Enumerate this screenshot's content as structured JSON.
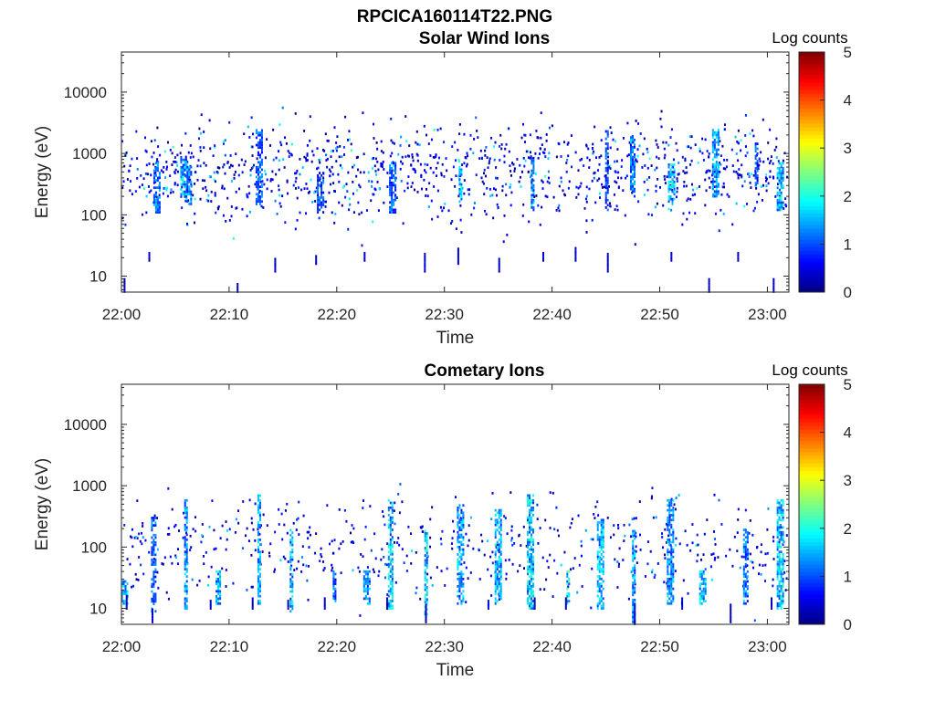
{
  "figure": {
    "title": "RPCICA160114T22.PNG"
  },
  "chart_data": [
    {
      "type": "heatmap",
      "title": "Solar Wind Ions",
      "xlabel": "Time",
      "ylabel": "Energy (eV)",
      "x_ticks": [
        "22:00",
        "22:10",
        "22:20",
        "22:30",
        "22:40",
        "22:50",
        "23:00"
      ],
      "x_range_minutes": [
        0,
        62
      ],
      "y_scale": "log",
      "y_ticks": [
        10,
        100,
        1000,
        10000
      ],
      "y_tick_labels": [
        "10",
        "100",
        "1000",
        "10000"
      ],
      "y_range": [
        5.5,
        45000
      ],
      "colorbar": {
        "title": "Log counts",
        "range": [
          0,
          5
        ],
        "ticks": [
          "0",
          "1",
          "2",
          "3",
          "4",
          "5"
        ]
      },
      "grid": false,
      "scatter_seed": 11,
      "scatter": {
        "n": 1150,
        "logE_min": 0.75,
        "logE_max": 4.35,
        "peak_logE": 2.7,
        "spread": 0.55,
        "max_level": 2.2
      },
      "bursts": [
        {
          "t": 3.3,
          "e_lo": 110,
          "e_hi": 700,
          "level": 1.4
        },
        {
          "t": 5.8,
          "e_lo": 180,
          "e_hi": 900,
          "level": 1.7
        },
        {
          "t": 6.3,
          "e_lo": 150,
          "e_hi": 600,
          "level": 1.6
        },
        {
          "t": 12.8,
          "e_lo": 150,
          "e_hi": 2500,
          "level": 1.3
        },
        {
          "t": 18.5,
          "e_lo": 110,
          "e_hi": 500,
          "level": 1.2
        },
        {
          "t": 25.2,
          "e_lo": 110,
          "e_hi": 700,
          "level": 1.3
        },
        {
          "t": 31.5,
          "e_lo": 150,
          "e_hi": 600,
          "level": 1.8
        },
        {
          "t": 38.2,
          "e_lo": 120,
          "e_hi": 900,
          "level": 1.6
        },
        {
          "t": 45.1,
          "e_lo": 120,
          "e_hi": 2500,
          "level": 1.2
        },
        {
          "t": 47.5,
          "e_lo": 200,
          "e_hi": 2000,
          "level": 1.5
        },
        {
          "t": 51.1,
          "e_lo": 150,
          "e_hi": 700,
          "level": 1.9
        },
        {
          "t": 55.2,
          "e_lo": 200,
          "e_hi": 2500,
          "level": 1.7
        },
        {
          "t": 59.0,
          "e_lo": 300,
          "e_hi": 1500,
          "level": 1.2
        },
        {
          "t": 61.2,
          "e_lo": 120,
          "e_hi": 700,
          "level": 1.9
        }
      ],
      "low_energy_bursts": [
        {
          "t": 0.2,
          "e_lo": 5.6,
          "e_hi": 9
        },
        {
          "t": 2.5,
          "e_lo": 18,
          "e_hi": 25
        },
        {
          "t": 10.7,
          "e_lo": 5.6,
          "e_hi": 8
        },
        {
          "t": 14.2,
          "e_lo": 12,
          "e_hi": 20
        },
        {
          "t": 18.0,
          "e_lo": 16,
          "e_hi": 22
        },
        {
          "t": 22.5,
          "e_lo": 18,
          "e_hi": 25
        },
        {
          "t": 28.1,
          "e_lo": 12,
          "e_hi": 25
        },
        {
          "t": 31.2,
          "e_lo": 16,
          "e_hi": 30
        },
        {
          "t": 35.0,
          "e_lo": 12,
          "e_hi": 20
        },
        {
          "t": 39.1,
          "e_lo": 18,
          "e_hi": 25
        },
        {
          "t": 42.1,
          "e_lo": 18,
          "e_hi": 30
        },
        {
          "t": 45.1,
          "e_lo": 12,
          "e_hi": 25
        },
        {
          "t": 51.0,
          "e_lo": 18,
          "e_hi": 25
        },
        {
          "t": 54.5,
          "e_lo": 5.6,
          "e_hi": 9
        },
        {
          "t": 57.2,
          "e_lo": 18,
          "e_hi": 25
        },
        {
          "t": 60.5,
          "e_lo": 5.6,
          "e_hi": 9
        }
      ]
    },
    {
      "type": "heatmap",
      "title": "Cometary Ions",
      "xlabel": "Time",
      "ylabel": "Energy (eV)",
      "x_ticks": [
        "22:00",
        "22:10",
        "22:20",
        "22:30",
        "22:40",
        "22:50",
        "23:00"
      ],
      "x_range_minutes": [
        0,
        62
      ],
      "y_scale": "log",
      "y_ticks": [
        10,
        100,
        1000,
        10000
      ],
      "y_tick_labels": [
        "10",
        "100",
        "1000",
        "10000"
      ],
      "y_range": [
        5.5,
        45000
      ],
      "colorbar": {
        "title": "Log counts",
        "range": [
          0,
          5
        ],
        "ticks": [
          "0",
          "1",
          "2",
          "3",
          "4",
          "5"
        ]
      },
      "grid": false,
      "scatter_seed": 29,
      "scatter": {
        "n": 560,
        "logE_min": 0.8,
        "logE_max": 3.7,
        "peak_logE": 2.0,
        "spread": 0.55,
        "max_level": 1.8
      },
      "bursts": [
        {
          "t": 0.3,
          "e_lo": 12,
          "e_hi": 30,
          "level": 2.0
        },
        {
          "t": 3.0,
          "e_lo": 9,
          "e_hi": 300,
          "level": 1.3
        },
        {
          "t": 6.0,
          "e_lo": 10,
          "e_hi": 600,
          "level": 1.6
        },
        {
          "t": 9.0,
          "e_lo": 12,
          "e_hi": 40,
          "level": 1.9
        },
        {
          "t": 12.8,
          "e_lo": 12,
          "e_hi": 700,
          "level": 1.7
        },
        {
          "t": 15.8,
          "e_lo": 9,
          "e_hi": 200,
          "level": 1.8
        },
        {
          "t": 19.8,
          "e_lo": 12,
          "e_hi": 40,
          "level": 1.4
        },
        {
          "t": 22.8,
          "e_lo": 12,
          "e_hi": 40,
          "level": 1.5
        },
        {
          "t": 25.0,
          "e_lo": 10,
          "e_hi": 600,
          "level": 1.9
        },
        {
          "t": 28.3,
          "e_lo": 8,
          "e_hi": 200,
          "level": 2.0
        },
        {
          "t": 31.5,
          "e_lo": 12,
          "e_hi": 500,
          "level": 1.7
        },
        {
          "t": 35.0,
          "e_lo": 12,
          "e_hi": 400,
          "level": 1.8
        },
        {
          "t": 38.0,
          "e_lo": 10,
          "e_hi": 700,
          "level": 2.0
        },
        {
          "t": 41.5,
          "e_lo": 12,
          "e_hi": 40,
          "level": 2.2
        },
        {
          "t": 44.5,
          "e_lo": 10,
          "e_hi": 300,
          "level": 1.8
        },
        {
          "t": 47.6,
          "e_lo": 6,
          "e_hi": 200,
          "level": 1.7
        },
        {
          "t": 51.0,
          "e_lo": 12,
          "e_hi": 600,
          "level": 1.6
        },
        {
          "t": 54.0,
          "e_lo": 12,
          "e_hi": 45,
          "level": 1.9
        },
        {
          "t": 58.0,
          "e_lo": 12,
          "e_hi": 200,
          "level": 1.5
        },
        {
          "t": 61.2,
          "e_lo": 10,
          "e_hi": 600,
          "level": 1.9
        }
      ],
      "low_energy_bursts": [
        {
          "t": 0.4,
          "e_lo": 10,
          "e_hi": 16
        },
        {
          "t": 2.8,
          "e_lo": 6,
          "e_hi": 10
        },
        {
          "t": 8.2,
          "e_lo": 10,
          "e_hi": 14
        },
        {
          "t": 12.1,
          "e_lo": 10,
          "e_hi": 15
        },
        {
          "t": 15.4,
          "e_lo": 10,
          "e_hi": 14
        },
        {
          "t": 18.8,
          "e_lo": 10,
          "e_hi": 15
        },
        {
          "t": 24.6,
          "e_lo": 10,
          "e_hi": 15
        },
        {
          "t": 28.2,
          "e_lo": 6,
          "e_hi": 12
        },
        {
          "t": 34.0,
          "e_lo": 10,
          "e_hi": 14
        },
        {
          "t": 38.3,
          "e_lo": 10,
          "e_hi": 15
        },
        {
          "t": 41.2,
          "e_lo": 10,
          "e_hi": 15
        },
        {
          "t": 47.6,
          "e_lo": 5.6,
          "e_hi": 12
        },
        {
          "t": 52.0,
          "e_lo": 10,
          "e_hi": 15
        },
        {
          "t": 56.5,
          "e_lo": 6,
          "e_hi": 12
        },
        {
          "t": 60.3,
          "e_lo": 10,
          "e_hi": 15
        }
      ]
    }
  ]
}
